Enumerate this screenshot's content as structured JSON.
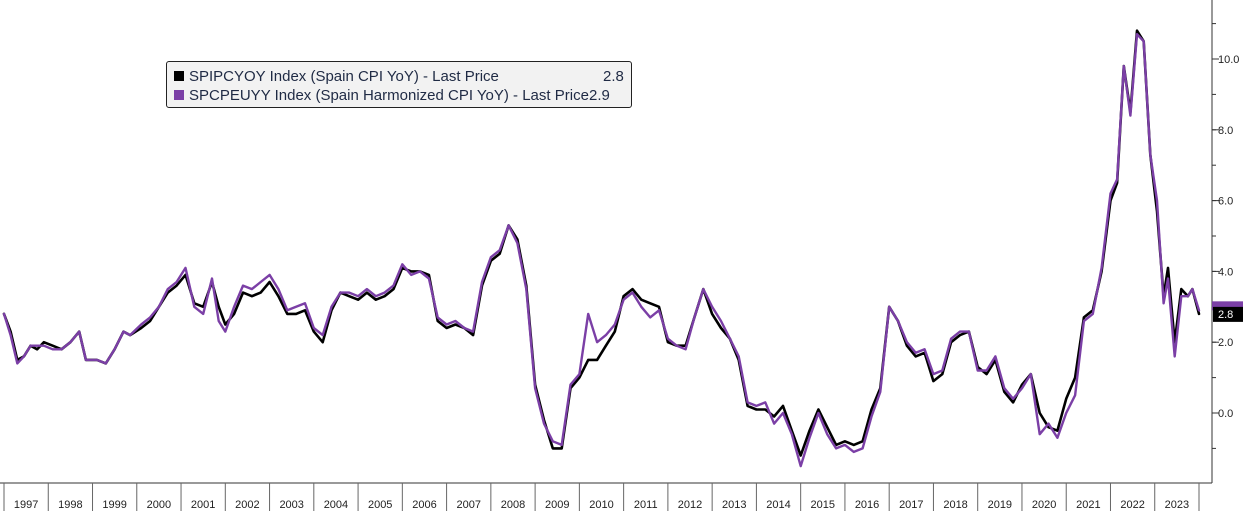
{
  "chart_data": {
    "type": "line",
    "title": "",
    "xlabel": "",
    "ylabel": "",
    "x_range": [
      1997.0,
      2024.0
    ],
    "ylim": [
      -1.5,
      11.2
    ],
    "y_ticks": [
      "10.0",
      "8.0",
      "6.0",
      "4.0",
      "2.0",
      "0.0"
    ],
    "y_tick_values": [
      10,
      8,
      6,
      4,
      2,
      0
    ],
    "x_tick_labels": [
      "1997",
      "1998",
      "1999",
      "2000",
      "2001",
      "2002",
      "2003",
      "2004",
      "2005",
      "2006",
      "2007",
      "2008",
      "2009",
      "2010",
      "2011",
      "2012",
      "2013",
      "2014",
      "2015",
      "2016",
      "2017",
      "2018",
      "2019",
      "2020",
      "2021",
      "2022",
      "2023"
    ],
    "legend_position": "top-left",
    "grid": false,
    "last_price_label": "2.8",
    "series": [
      {
        "name": "SPIPCYOY Index (Spain CPI YoY) - Last Price",
        "last_value": "2.8",
        "color": "#000000",
        "points": [
          [
            1997.0,
            2.8
          ],
          [
            1997.15,
            2.3
          ],
          [
            1997.3,
            1.5
          ],
          [
            1997.45,
            1.6
          ],
          [
            1997.6,
            1.9
          ],
          [
            1997.75,
            1.8
          ],
          [
            1997.9,
            2.0
          ],
          [
            1998.1,
            1.9
          ],
          [
            1998.3,
            1.8
          ],
          [
            1998.5,
            2.0
          ],
          [
            1998.7,
            2.3
          ],
          [
            1998.85,
            1.5
          ],
          [
            1999.1,
            1.5
          ],
          [
            1999.3,
            1.4
          ],
          [
            1999.5,
            1.8
          ],
          [
            1999.7,
            2.3
          ],
          [
            1999.85,
            2.2
          ],
          [
            2000.1,
            2.4
          ],
          [
            2000.3,
            2.6
          ],
          [
            2000.5,
            3.0
          ],
          [
            2000.7,
            3.4
          ],
          [
            2000.9,
            3.6
          ],
          [
            2001.1,
            3.9
          ],
          [
            2001.3,
            3.1
          ],
          [
            2001.5,
            3.0
          ],
          [
            2001.7,
            3.7
          ],
          [
            2001.85,
            3.0
          ],
          [
            2002.0,
            2.5
          ],
          [
            2002.2,
            2.8
          ],
          [
            2002.4,
            3.4
          ],
          [
            2002.6,
            3.3
          ],
          [
            2002.8,
            3.4
          ],
          [
            2003.0,
            3.7
          ],
          [
            2003.2,
            3.3
          ],
          [
            2003.4,
            2.8
          ],
          [
            2003.6,
            2.8
          ],
          [
            2003.8,
            2.9
          ],
          [
            2004.0,
            2.3
          ],
          [
            2004.2,
            2.0
          ],
          [
            2004.4,
            2.9
          ],
          [
            2004.6,
            3.4
          ],
          [
            2004.8,
            3.3
          ],
          [
            2005.0,
            3.2
          ],
          [
            2005.2,
            3.4
          ],
          [
            2005.4,
            3.2
          ],
          [
            2005.6,
            3.3
          ],
          [
            2005.8,
            3.5
          ],
          [
            2006.0,
            4.1
          ],
          [
            2006.2,
            4.0
          ],
          [
            2006.4,
            4.0
          ],
          [
            2006.6,
            3.9
          ],
          [
            2006.8,
            2.6
          ],
          [
            2007.0,
            2.4
          ],
          [
            2007.2,
            2.5
          ],
          [
            2007.4,
            2.4
          ],
          [
            2007.6,
            2.2
          ],
          [
            2007.8,
            3.6
          ],
          [
            2008.0,
            4.3
          ],
          [
            2008.2,
            4.5
          ],
          [
            2008.4,
            5.3
          ],
          [
            2008.6,
            4.9
          ],
          [
            2008.8,
            3.6
          ],
          [
            2009.0,
            0.8
          ],
          [
            2009.2,
            -0.2
          ],
          [
            2009.4,
            -1.0
          ],
          [
            2009.6,
            -1.0
          ],
          [
            2009.8,
            0.7
          ],
          [
            2010.0,
            1.0
          ],
          [
            2010.2,
            1.5
          ],
          [
            2010.4,
            1.5
          ],
          [
            2010.6,
            1.9
          ],
          [
            2010.8,
            2.3
          ],
          [
            2011.0,
            3.3
          ],
          [
            2011.2,
            3.5
          ],
          [
            2011.4,
            3.2
          ],
          [
            2011.6,
            3.1
          ],
          [
            2011.8,
            3.0
          ],
          [
            2012.0,
            2.0
          ],
          [
            2012.2,
            1.9
          ],
          [
            2012.4,
            1.9
          ],
          [
            2012.6,
            2.7
          ],
          [
            2012.8,
            3.5
          ],
          [
            2013.0,
            2.8
          ],
          [
            2013.2,
            2.4
          ],
          [
            2013.4,
            2.1
          ],
          [
            2013.6,
            1.5
          ],
          [
            2013.8,
            0.2
          ],
          [
            2014.0,
            0.1
          ],
          [
            2014.2,
            0.1
          ],
          [
            2014.4,
            -0.1
          ],
          [
            2014.6,
            0.2
          ],
          [
            2014.8,
            -0.5
          ],
          [
            2015.0,
            -1.2
          ],
          [
            2015.2,
            -0.5
          ],
          [
            2015.4,
            0.1
          ],
          [
            2015.6,
            -0.4
          ],
          [
            2015.8,
            -0.9
          ],
          [
            2016.0,
            -0.8
          ],
          [
            2016.2,
            -0.9
          ],
          [
            2016.4,
            -0.8
          ],
          [
            2016.6,
            0.1
          ],
          [
            2016.8,
            0.7
          ],
          [
            2017.0,
            3.0
          ],
          [
            2017.2,
            2.6
          ],
          [
            2017.4,
            1.9
          ],
          [
            2017.6,
            1.6
          ],
          [
            2017.8,
            1.7
          ],
          [
            2018.0,
            0.9
          ],
          [
            2018.2,
            1.1
          ],
          [
            2018.4,
            2.0
          ],
          [
            2018.6,
            2.2
          ],
          [
            2018.8,
            2.3
          ],
          [
            2019.0,
            1.3
          ],
          [
            2019.2,
            1.1
          ],
          [
            2019.4,
            1.5
          ],
          [
            2019.6,
            0.6
          ],
          [
            2019.8,
            0.3
          ],
          [
            2020.0,
            0.8
          ],
          [
            2020.2,
            1.1
          ],
          [
            2020.4,
            0.0
          ],
          [
            2020.6,
            -0.4
          ],
          [
            2020.8,
            -0.5
          ],
          [
            2021.0,
            0.4
          ],
          [
            2021.2,
            1.0
          ],
          [
            2021.4,
            2.7
          ],
          [
            2021.6,
            2.9
          ],
          [
            2021.8,
            4.0
          ],
          [
            2022.0,
            6.0
          ],
          [
            2022.15,
            6.5
          ],
          [
            2022.3,
            9.8
          ],
          [
            2022.45,
            8.5
          ],
          [
            2022.6,
            10.8
          ],
          [
            2022.75,
            10.5
          ],
          [
            2022.9,
            7.3
          ],
          [
            2023.05,
            5.7
          ],
          [
            2023.2,
            3.3
          ],
          [
            2023.3,
            4.1
          ],
          [
            2023.45,
            2.0
          ],
          [
            2023.6,
            3.5
          ],
          [
            2023.75,
            3.3
          ],
          [
            2023.85,
            3.5
          ],
          [
            2024.0,
            2.8
          ]
        ]
      },
      {
        "name": "SPCPEUYY Index (Spain Harmonized CPI YoY) - Last Price",
        "last_value": "2.9",
        "color": "#7b3fa6",
        "points": [
          [
            1997.0,
            2.8
          ],
          [
            1997.15,
            2.2
          ],
          [
            1997.3,
            1.4
          ],
          [
            1997.45,
            1.6
          ],
          [
            1997.6,
            1.9
          ],
          [
            1997.75,
            1.9
          ],
          [
            1997.9,
            1.9
          ],
          [
            1998.1,
            1.8
          ],
          [
            1998.3,
            1.8
          ],
          [
            1998.5,
            2.0
          ],
          [
            1998.7,
            2.3
          ],
          [
            1998.85,
            1.5
          ],
          [
            1999.1,
            1.5
          ],
          [
            1999.3,
            1.4
          ],
          [
            1999.5,
            1.8
          ],
          [
            1999.7,
            2.3
          ],
          [
            1999.85,
            2.2
          ],
          [
            2000.1,
            2.5
          ],
          [
            2000.3,
            2.7
          ],
          [
            2000.5,
            3.0
          ],
          [
            2000.7,
            3.5
          ],
          [
            2000.9,
            3.7
          ],
          [
            2001.1,
            4.1
          ],
          [
            2001.3,
            3.0
          ],
          [
            2001.5,
            2.8
          ],
          [
            2001.7,
            3.8
          ],
          [
            2001.85,
            2.6
          ],
          [
            2002.0,
            2.3
          ],
          [
            2002.2,
            3.0
          ],
          [
            2002.4,
            3.6
          ],
          [
            2002.6,
            3.5
          ],
          [
            2002.8,
            3.7
          ],
          [
            2003.0,
            3.9
          ],
          [
            2003.2,
            3.5
          ],
          [
            2003.4,
            2.9
          ],
          [
            2003.6,
            3.0
          ],
          [
            2003.8,
            3.1
          ],
          [
            2004.0,
            2.4
          ],
          [
            2004.2,
            2.2
          ],
          [
            2004.4,
            3.0
          ],
          [
            2004.6,
            3.4
          ],
          [
            2004.8,
            3.4
          ],
          [
            2005.0,
            3.3
          ],
          [
            2005.2,
            3.5
          ],
          [
            2005.4,
            3.3
          ],
          [
            2005.6,
            3.4
          ],
          [
            2005.8,
            3.6
          ],
          [
            2006.0,
            4.2
          ],
          [
            2006.2,
            3.9
          ],
          [
            2006.4,
            4.0
          ],
          [
            2006.6,
            3.8
          ],
          [
            2006.8,
            2.7
          ],
          [
            2007.0,
            2.5
          ],
          [
            2007.2,
            2.6
          ],
          [
            2007.4,
            2.4
          ],
          [
            2007.6,
            2.3
          ],
          [
            2007.8,
            3.7
          ],
          [
            2008.0,
            4.4
          ],
          [
            2008.2,
            4.6
          ],
          [
            2008.4,
            5.3
          ],
          [
            2008.6,
            4.8
          ],
          [
            2008.8,
            3.5
          ],
          [
            2009.0,
            0.7
          ],
          [
            2009.2,
            -0.3
          ],
          [
            2009.4,
            -0.8
          ],
          [
            2009.6,
            -0.9
          ],
          [
            2009.8,
            0.8
          ],
          [
            2010.0,
            1.1
          ],
          [
            2010.2,
            2.8
          ],
          [
            2010.4,
            2.0
          ],
          [
            2010.6,
            2.2
          ],
          [
            2010.8,
            2.5
          ],
          [
            2011.0,
            3.2
          ],
          [
            2011.2,
            3.4
          ],
          [
            2011.4,
            3.0
          ],
          [
            2011.6,
            2.7
          ],
          [
            2011.8,
            2.9
          ],
          [
            2012.0,
            2.1
          ],
          [
            2012.2,
            1.9
          ],
          [
            2012.4,
            1.8
          ],
          [
            2012.6,
            2.7
          ],
          [
            2012.8,
            3.5
          ],
          [
            2013.0,
            3.0
          ],
          [
            2013.2,
            2.6
          ],
          [
            2013.4,
            2.1
          ],
          [
            2013.6,
            1.6
          ],
          [
            2013.8,
            0.3
          ],
          [
            2014.0,
            0.2
          ],
          [
            2014.2,
            0.3
          ],
          [
            2014.4,
            -0.3
          ],
          [
            2014.6,
            0.0
          ],
          [
            2014.8,
            -0.6
          ],
          [
            2015.0,
            -1.5
          ],
          [
            2015.2,
            -0.7
          ],
          [
            2015.4,
            0.0
          ],
          [
            2015.6,
            -0.6
          ],
          [
            2015.8,
            -1.0
          ],
          [
            2016.0,
            -0.9
          ],
          [
            2016.2,
            -1.1
          ],
          [
            2016.4,
            -1.0
          ],
          [
            2016.6,
            -0.1
          ],
          [
            2016.8,
            0.6
          ],
          [
            2017.0,
            3.0
          ],
          [
            2017.2,
            2.6
          ],
          [
            2017.4,
            2.0
          ],
          [
            2017.6,
            1.7
          ],
          [
            2017.8,
            1.8
          ],
          [
            2018.0,
            1.1
          ],
          [
            2018.2,
            1.2
          ],
          [
            2018.4,
            2.1
          ],
          [
            2018.6,
            2.3
          ],
          [
            2018.8,
            2.3
          ],
          [
            2019.0,
            1.2
          ],
          [
            2019.2,
            1.2
          ],
          [
            2019.4,
            1.6
          ],
          [
            2019.6,
            0.7
          ],
          [
            2019.8,
            0.4
          ],
          [
            2020.0,
            0.7
          ],
          [
            2020.2,
            1.1
          ],
          [
            2020.4,
            -0.6
          ],
          [
            2020.6,
            -0.3
          ],
          [
            2020.8,
            -0.7
          ],
          [
            2021.0,
            0.0
          ],
          [
            2021.2,
            0.5
          ],
          [
            2021.4,
            2.6
          ],
          [
            2021.6,
            2.8
          ],
          [
            2021.8,
            4.1
          ],
          [
            2022.0,
            6.2
          ],
          [
            2022.15,
            6.6
          ],
          [
            2022.3,
            9.8
          ],
          [
            2022.45,
            8.4
          ],
          [
            2022.6,
            10.7
          ],
          [
            2022.75,
            10.5
          ],
          [
            2022.9,
            7.3
          ],
          [
            2023.05,
            6.0
          ],
          [
            2023.2,
            3.1
          ],
          [
            2023.3,
            3.8
          ],
          [
            2023.45,
            1.6
          ],
          [
            2023.6,
            3.3
          ],
          [
            2023.75,
            3.3
          ],
          [
            2023.85,
            3.5
          ],
          [
            2024.0,
            2.9
          ]
        ]
      }
    ]
  }
}
